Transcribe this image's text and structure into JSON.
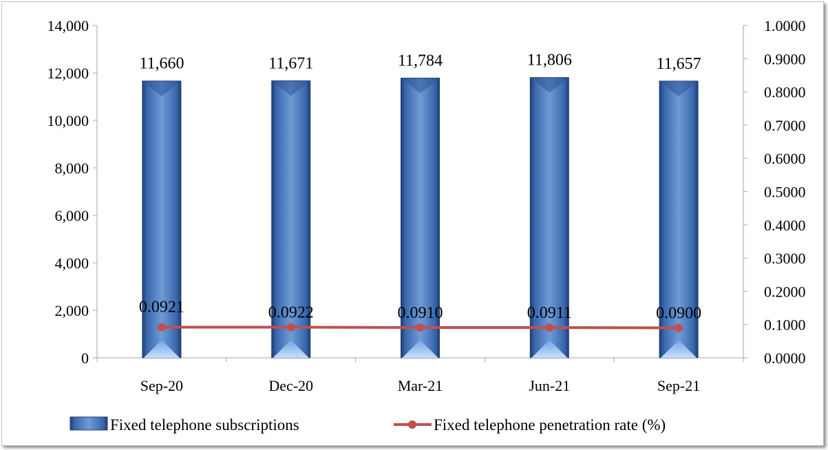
{
  "chart_data": {
    "type": "bar",
    "categories": [
      "Sep-20",
      "Dec-20",
      "Mar-21",
      "Jun-21",
      "Sep-21"
    ],
    "series": [
      {
        "name": "Fixed telephone subscriptions",
        "type": "bar",
        "axis": "left",
        "values": [
          11660,
          11671,
          11784,
          11806,
          11657
        ],
        "labels": [
          "11,660",
          "11,671",
          "11,784",
          "11,806",
          "11,657"
        ],
        "color": "#4f81bd"
      },
      {
        "name": "Fixed telephone penetration rate (%)",
        "type": "line",
        "axis": "right",
        "values": [
          0.0921,
          0.0922,
          0.091,
          0.0911,
          0.09
        ],
        "labels": [
          "0.0921",
          "0.0922",
          "0.0910",
          "0.0911",
          "0.0900"
        ],
        "color": "#c0504d"
      }
    ],
    "y_left": {
      "ylim": [
        0,
        14000
      ],
      "ticks": [
        0,
        2000,
        4000,
        6000,
        8000,
        10000,
        12000,
        14000
      ],
      "tick_labels": [
        "0",
        "2,000",
        "4,000",
        "6,000",
        "8,000",
        "10,000",
        "12,000",
        "14,000"
      ]
    },
    "y_right": {
      "ylim": [
        0,
        1
      ],
      "ticks": [
        0,
        0.1,
        0.2,
        0.3,
        0.4,
        0.5,
        0.6,
        0.7,
        0.8,
        0.9,
        1.0
      ],
      "tick_labels": [
        "0.0000",
        "0.1000",
        "0.2000",
        "0.3000",
        "0.4000",
        "0.5000",
        "0.6000",
        "0.7000",
        "0.8000",
        "0.9000",
        "1.0000"
      ]
    },
    "legend": {
      "position": "bottom",
      "entries": [
        "Fixed telephone subscriptions",
        "Fixed telephone penetration rate (%)"
      ]
    },
    "grid": false
  }
}
